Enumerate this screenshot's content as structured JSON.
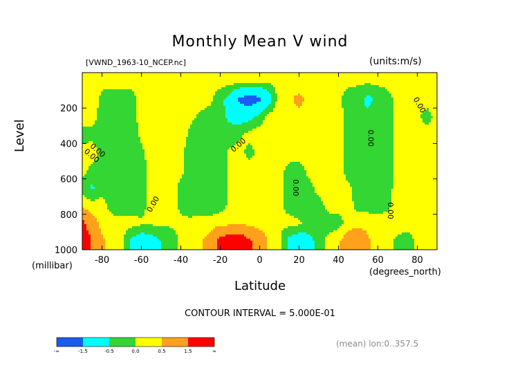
{
  "chart_data": {
    "type": "heatmap",
    "title": "Monthly Mean V wind",
    "dataset_label": "[VWND_1963-10_NCEP.nc]",
    "units_label": "(units:m/s)",
    "xlabel": "Latitude",
    "x_units": "(degrees_north)",
    "ylabel": "Level",
    "y_units": "(millibar)",
    "xlim": [
      -90,
      90
    ],
    "ylim": [
      1000,
      0
    ],
    "x_ticks": [
      -80,
      -60,
      -40,
      -20,
      0,
      20,
      40,
      60,
      80
    ],
    "x_tick_labels": [
      "-80",
      "-60",
      "-40",
      "-20",
      "0",
      "20",
      "40",
      "60",
      "80"
    ],
    "y_ticks": [
      200,
      400,
      600,
      800,
      1000
    ],
    "y_tick_labels": [
      "200",
      "400",
      "600",
      "800",
      "1000"
    ],
    "contour_interval": "CONTOUR INTERVAL = 5.000E-01",
    "contour_labels": [
      "0.00",
      "0.00",
      "0.00",
      "0.00",
      "0.00",
      "0.00",
      "0.00",
      "0.00"
    ],
    "footer_note": "(mean) lon:0..357.5",
    "colorbar": {
      "colors": [
        "#1a5cf0",
        "#00ffff",
        "#33d633",
        "#ffff00",
        "#ffa11a",
        "#ff0000"
      ],
      "labels": [
        "-∞",
        "-1.5",
        "-0.5",
        "0.0",
        "0.5",
        "1.5",
        "∞"
      ]
    },
    "field": {
      "x_nodes": [
        -90,
        -85,
        -80,
        -75,
        -70,
        -65,
        -60,
        -55,
        -50,
        -45,
        -40,
        -35,
        -30,
        -25,
        -20,
        -15,
        -10,
        -5,
        0,
        5,
        10,
        15,
        20,
        25,
        30,
        35,
        40,
        45,
        50,
        55,
        60,
        65,
        70,
        75,
        80,
        85,
        90
      ],
      "y_nodes": [
        50,
        150,
        250,
        350,
        450,
        550,
        650,
        750,
        850,
        950
      ],
      "values": [
        [
          0.1,
          0.1,
          0.1,
          0.2,
          0.2,
          0.2,
          0.2,
          0.2,
          0.2,
          0.2,
          0.2,
          0.2,
          0.2,
          0.2,
          0.2,
          0.2,
          0.2,
          0.2,
          0.1,
          0.1,
          0.1,
          0.1,
          0.1,
          0.1,
          0.1,
          0.1,
          0.1,
          0.1,
          0.1,
          0.1,
          0.1,
          0.1,
          0.1,
          0.1,
          0.1,
          0.1,
          0.1
        ],
        [
          0.2,
          0.2,
          -0.1,
          -0.3,
          -0.3,
          -0.2,
          0.2,
          0.2,
          0.2,
          0.3,
          0.2,
          0.2,
          0.2,
          0.1,
          -0.3,
          -0.8,
          -1.7,
          -2.0,
          -1.7,
          -0.8,
          0.3,
          0.4,
          0.7,
          0.3,
          0.2,
          0.1,
          0.1,
          -0.2,
          -0.3,
          -0.7,
          -0.3,
          -0.1,
          0.1,
          0.1,
          0.2,
          0.2,
          0.2
        ],
        [
          0.2,
          0.2,
          -0.2,
          -0.4,
          -0.4,
          -0.2,
          0.2,
          0.3,
          0.3,
          0.3,
          0.2,
          0.1,
          -0.1,
          -0.2,
          -0.4,
          -0.6,
          -0.8,
          -0.7,
          -0.3,
          0.2,
          0.3,
          0.3,
          0.3,
          0.3,
          0.3,
          0.2,
          0.2,
          -0.2,
          -0.3,
          -0.3,
          -0.2,
          -0.2,
          0.1,
          0.1,
          0.1,
          -0.2,
          0.2
        ],
        [
          -0.2,
          -0.2,
          -0.3,
          -0.4,
          -0.4,
          -0.3,
          0.1,
          0.3,
          0.3,
          0.3,
          0.2,
          -0.1,
          -0.3,
          -0.3,
          -0.3,
          -0.3,
          -0.1,
          0.2,
          0.3,
          0.3,
          0.3,
          0.3,
          0.3,
          0.3,
          0.3,
          0.2,
          0.2,
          -0.2,
          -0.3,
          -0.3,
          -0.3,
          -0.2,
          0.1,
          0.2,
          0.2,
          0.2,
          0.2
        ],
        [
          0.2,
          0.3,
          -0.2,
          -0.4,
          -0.4,
          -0.3,
          -0.1,
          0.2,
          0.3,
          0.2,
          0.1,
          -0.2,
          -0.3,
          -0.3,
          -0.2,
          0.1,
          0.2,
          -0.2,
          0.2,
          0.3,
          0.3,
          0.3,
          0.3,
          0.3,
          0.3,
          0.3,
          0.2,
          -0.2,
          -0.3,
          -0.3,
          -0.3,
          -0.2,
          0.1,
          0.2,
          0.2,
          0.2,
          0.2
        ],
        [
          0.2,
          -0.2,
          -0.2,
          -0.3,
          -0.4,
          -0.3,
          -0.2,
          0.2,
          0.2,
          0.2,
          0.1,
          -0.2,
          -0.3,
          -0.3,
          -0.2,
          0.1,
          0.2,
          0.3,
          0.3,
          0.3,
          0.2,
          -0.2,
          -0.3,
          0.2,
          0.3,
          0.3,
          0.2,
          -0.2,
          -0.3,
          -0.3,
          -0.2,
          -0.2,
          0.1,
          0.2,
          0.2,
          0.2,
          0.2
        ],
        [
          -0.2,
          -0.6,
          -0.2,
          -0.3,
          -0.4,
          -0.3,
          -0.2,
          0.2,
          0.2,
          0.2,
          -0.1,
          -0.2,
          -0.3,
          -0.3,
          -0.2,
          0.1,
          0.2,
          0.3,
          0.3,
          0.2,
          0.1,
          -0.2,
          -0.4,
          -0.2,
          0.2,
          0.2,
          0.2,
          0.1,
          -0.2,
          -0.2,
          -0.2,
          -0.1,
          0.1,
          0.2,
          0.2,
          0.2,
          0.2
        ],
        [
          0.3,
          0.2,
          0.2,
          -0.2,
          -0.3,
          -0.3,
          -0.2,
          0.2,
          0.2,
          0.2,
          -0.1,
          -0.2,
          -0.3,
          -0.3,
          -0.2,
          0.1,
          0.2,
          0.2,
          0.2,
          0.2,
          0.1,
          -0.2,
          -0.4,
          -0.3,
          -0.2,
          0.2,
          0.2,
          0.2,
          -0.2,
          -0.2,
          -0.2,
          -0.1,
          0.2,
          0.2,
          0.2,
          0.2,
          0.2
        ],
        [
          1.8,
          0.8,
          0.3,
          0.2,
          0.2,
          0.2,
          0.1,
          0.1,
          0.1,
          0.1,
          0.1,
          0.1,
          0.2,
          0.2,
          0.3,
          0.3,
          0.4,
          0.3,
          0.2,
          0.2,
          0.1,
          0.2,
          0.1,
          -0.2,
          -0.3,
          -0.3,
          -0.2,
          0.2,
          0.3,
          0.3,
          0.2,
          0.2,
          0.2,
          0.2,
          0.2,
          0.2,
          0.2
        ],
        [
          2.5,
          1.4,
          0.6,
          0.2,
          0.1,
          -0.6,
          -1.0,
          -0.8,
          -0.5,
          -0.3,
          0.1,
          0.3,
          0.4,
          0.8,
          1.8,
          2.2,
          2.2,
          1.6,
          1.0,
          0.4,
          0.1,
          -0.7,
          -1.0,
          -0.7,
          -0.3,
          0.2,
          0.4,
          0.9,
          1.1,
          0.6,
          0.2,
          0.1,
          -0.1,
          -0.2,
          0.1,
          0.2,
          0.2
        ]
      ]
    }
  }
}
